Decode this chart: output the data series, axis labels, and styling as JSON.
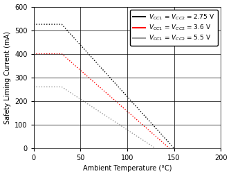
{
  "title": "",
  "xlabel": "Ambient Temperature (°C)",
  "ylabel": "Safety Liming Current (mA)",
  "xlim": [
    0,
    200
  ],
  "ylim": [
    0,
    600
  ],
  "xticks": [
    0,
    50,
    100,
    150,
    200
  ],
  "yticks": [
    0,
    100,
    200,
    300,
    400,
    500,
    600
  ],
  "lines": [
    {
      "label": "V₁ = V₂ = 2.75 V",
      "label_display": "$V_{CC1}$ = $V_{CC2}$ = 2.75 V",
      "color": "#000000",
      "x": [
        0,
        30,
        150
      ],
      "y": [
        525,
        525,
        0
      ],
      "linestyle": "dotted"
    },
    {
      "label": "V₁ = V₂ = 3.6 V",
      "label_display": "$V_{CC1}$ = $V_{CC2}$ = 3.6 V",
      "color": "#ff0000",
      "x": [
        0,
        30,
        145
      ],
      "y": [
        400,
        400,
        0
      ],
      "linestyle": "dotted"
    },
    {
      "label": "V₁ = V₂ = 5.5 V",
      "label_display": "$V_{CC1}$ = $V_{CC2}$ = 5.5 V",
      "color": "#999999",
      "x": [
        0,
        30,
        130
      ],
      "y": [
        260,
        260,
        0
      ],
      "linestyle": "dotted"
    }
  ],
  "legend_loc": "upper right",
  "grid": true,
  "linewidth": 1.0,
  "font_size": 6.5,
  "label_font_size": 7,
  "tick_font_size": 7,
  "fig_width": 3.34,
  "fig_height": 2.54,
  "dpi": 100
}
